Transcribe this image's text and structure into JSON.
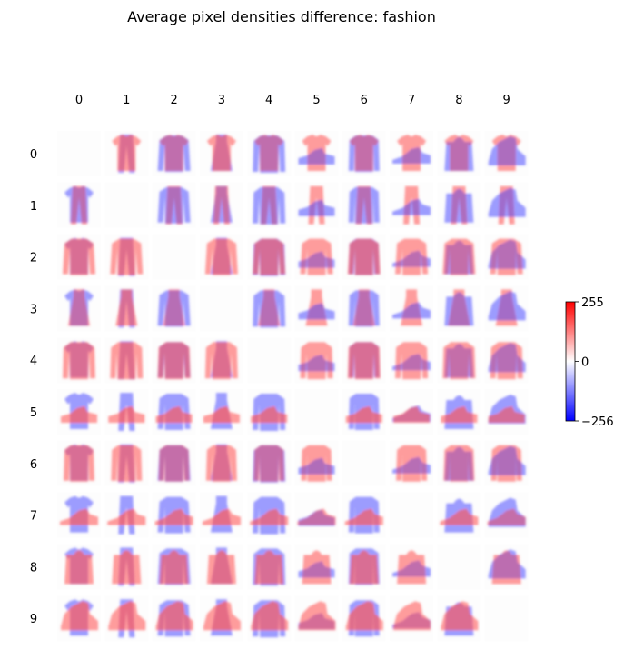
{
  "chart_data": {
    "type": "heatmap",
    "title": "Average pixel densities difference: fashion",
    "layout": "10x10 grid of image panels",
    "rows": [
      "0",
      "1",
      "2",
      "3",
      "4",
      "5",
      "6",
      "7",
      "8",
      "9"
    ],
    "columns": [
      "0",
      "1",
      "2",
      "3",
      "4",
      "5",
      "6",
      "7",
      "8",
      "9"
    ],
    "diagonal": "blank",
    "colorbar": {
      "colormap": "bwr",
      "vmin": -256,
      "vmax": 255,
      "ticks": [
        "255",
        "0",
        "−256"
      ]
    }
  },
  "colors": {
    "negative": "#0000ff",
    "zero": "#ffffff",
    "positive": "#ff0000"
  }
}
